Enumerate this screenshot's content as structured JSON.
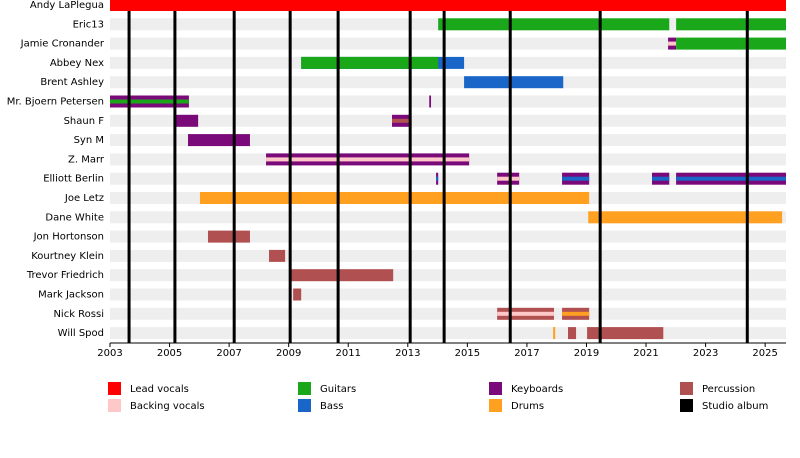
{
  "chart_data": {
    "type": "timeline",
    "xlim": [
      2003,
      2025.7
    ],
    "xticks": [
      2003,
      2005,
      2007,
      2009,
      2011,
      2013,
      2015,
      2017,
      2019,
      2021,
      2023,
      2025
    ],
    "roles": [
      {
        "name": "Lead vocals",
        "color": "#ff0000"
      },
      {
        "name": "Backing vocals",
        "color": "#ffc8c8"
      },
      {
        "name": "Guitars",
        "color": "#1aa81a"
      },
      {
        "name": "Bass",
        "color": "#1a66c8"
      },
      {
        "name": "Keyboards",
        "color": "#7a0a7a"
      },
      {
        "name": "Drums",
        "color": "#ffa020"
      },
      {
        "name": "Percussion",
        "color": "#b05050"
      }
    ],
    "album_label": "Studio album",
    "album_color": "#000000",
    "albums": [
      2003.64,
      2005.18,
      2007.17,
      2009.05,
      2010.66,
      2013.08,
      2014.22,
      2016.44,
      2019.46,
      2024.4
    ],
    "members": [
      {
        "name": "Andy LaPlegua",
        "bars": [
          {
            "role": "Lead vocals",
            "start": 2003,
            "end": 2025.7
          }
        ]
      },
      {
        "name": "Eric13",
        "bars": [
          {
            "role": "Guitars",
            "start": 2014.02,
            "end": 2021.78
          },
          {
            "role": "Guitars",
            "start": 2022.01,
            "end": 2025.7
          }
        ]
      },
      {
        "name": "Jamie Cronander",
        "bars": [
          {
            "role": "Keyboards",
            "start": 2021.74,
            "end": 2022.01,
            "secondary": "Backing vocals"
          },
          {
            "role": "Guitars",
            "start": 2022.01,
            "end": 2025.7
          }
        ]
      },
      {
        "name": "Abbey Nex",
        "bars": [
          {
            "role": "Bass",
            "start": 2009.42,
            "end": 2014.89
          },
          {
            "role": "Guitars",
            "start": 2009.42,
            "end": 2014.02
          }
        ]
      },
      {
        "name": "Brent Ashley",
        "bars": [
          {
            "role": "Bass",
            "start": 2014.89,
            "end": 2018.22
          }
        ]
      },
      {
        "name": "Mr. Bjoern Petersen",
        "bars": [
          {
            "role": "Keyboards",
            "start": 2003,
            "end": 2005.65,
            "secondary": "Guitars"
          },
          {
            "role": "Keyboards",
            "start": 2013.72,
            "end": 2013.78
          }
        ]
      },
      {
        "name": "Shaun F",
        "bars": [
          {
            "role": "Keyboards",
            "start": 2005.18,
            "end": 2005.96
          },
          {
            "role": "Keyboards",
            "start": 2012.47,
            "end": 2013.04,
            "secondary": "Percussion"
          }
        ]
      },
      {
        "name": "Syn M",
        "bars": [
          {
            "role": "Keyboards",
            "start": 2005.62,
            "end": 2007.7
          }
        ]
      },
      {
        "name": "Z. Marr",
        "bars": [
          {
            "role": "Keyboards",
            "start": 2008.24,
            "end": 2015.06,
            "secondary": "Backing vocals"
          }
        ]
      },
      {
        "name": "Elliott Berlin",
        "bars": [
          {
            "role": "Keyboards",
            "start": 2013.95,
            "end": 2014.02,
            "secondary": "Bass"
          },
          {
            "role": "Keyboards",
            "start": 2016.0,
            "end": 2016.74,
            "secondary": "Backing vocals"
          },
          {
            "role": "Keyboards",
            "start": 2018.18,
            "end": 2019.09,
            "secondary": "Bass"
          },
          {
            "role": "Keyboards",
            "start": 2021.2,
            "end": 2021.78,
            "secondary": "Bass"
          },
          {
            "role": "Keyboards",
            "start": 2022.01,
            "end": 2025.7,
            "secondary": "Bass"
          }
        ]
      },
      {
        "name": "Joe Letz",
        "bars": [
          {
            "role": "Drums",
            "start": 2006.02,
            "end": 2019.09
          }
        ]
      },
      {
        "name": "Dane White",
        "bars": [
          {
            "role": "Drums",
            "start": 2019.06,
            "end": 2025.57
          }
        ]
      },
      {
        "name": "Jon Hortonson",
        "bars": [
          {
            "role": "Percussion",
            "start": 2006.29,
            "end": 2007.7
          }
        ]
      },
      {
        "name": "Kourtney Klein",
        "bars": [
          {
            "role": "Percussion",
            "start": 2008.34,
            "end": 2008.88
          }
        ]
      },
      {
        "name": "Trevor Friedrich",
        "bars": [
          {
            "role": "Percussion",
            "start": 2009.05,
            "end": 2012.51
          }
        ]
      },
      {
        "name": "Mark Jackson",
        "bars": [
          {
            "role": "Percussion",
            "start": 2009.15,
            "end": 2009.42
          }
        ]
      },
      {
        "name": "Nick Rossi",
        "bars": [
          {
            "role": "Percussion",
            "start": 2016.0,
            "end": 2017.91,
            "secondary": "Backing vocals"
          },
          {
            "role": "Percussion",
            "start": 2018.18,
            "end": 2019.09,
            "secondary": "Drums"
          }
        ]
      },
      {
        "name": "Will Spod",
        "bars": [
          {
            "role": "Drums",
            "start": 2017.88,
            "end": 2017.95
          },
          {
            "role": "Percussion",
            "start": 2018.38,
            "end": 2018.65
          },
          {
            "role": "Percussion",
            "start": 2019.02,
            "end": 2021.58
          }
        ]
      }
    ]
  }
}
